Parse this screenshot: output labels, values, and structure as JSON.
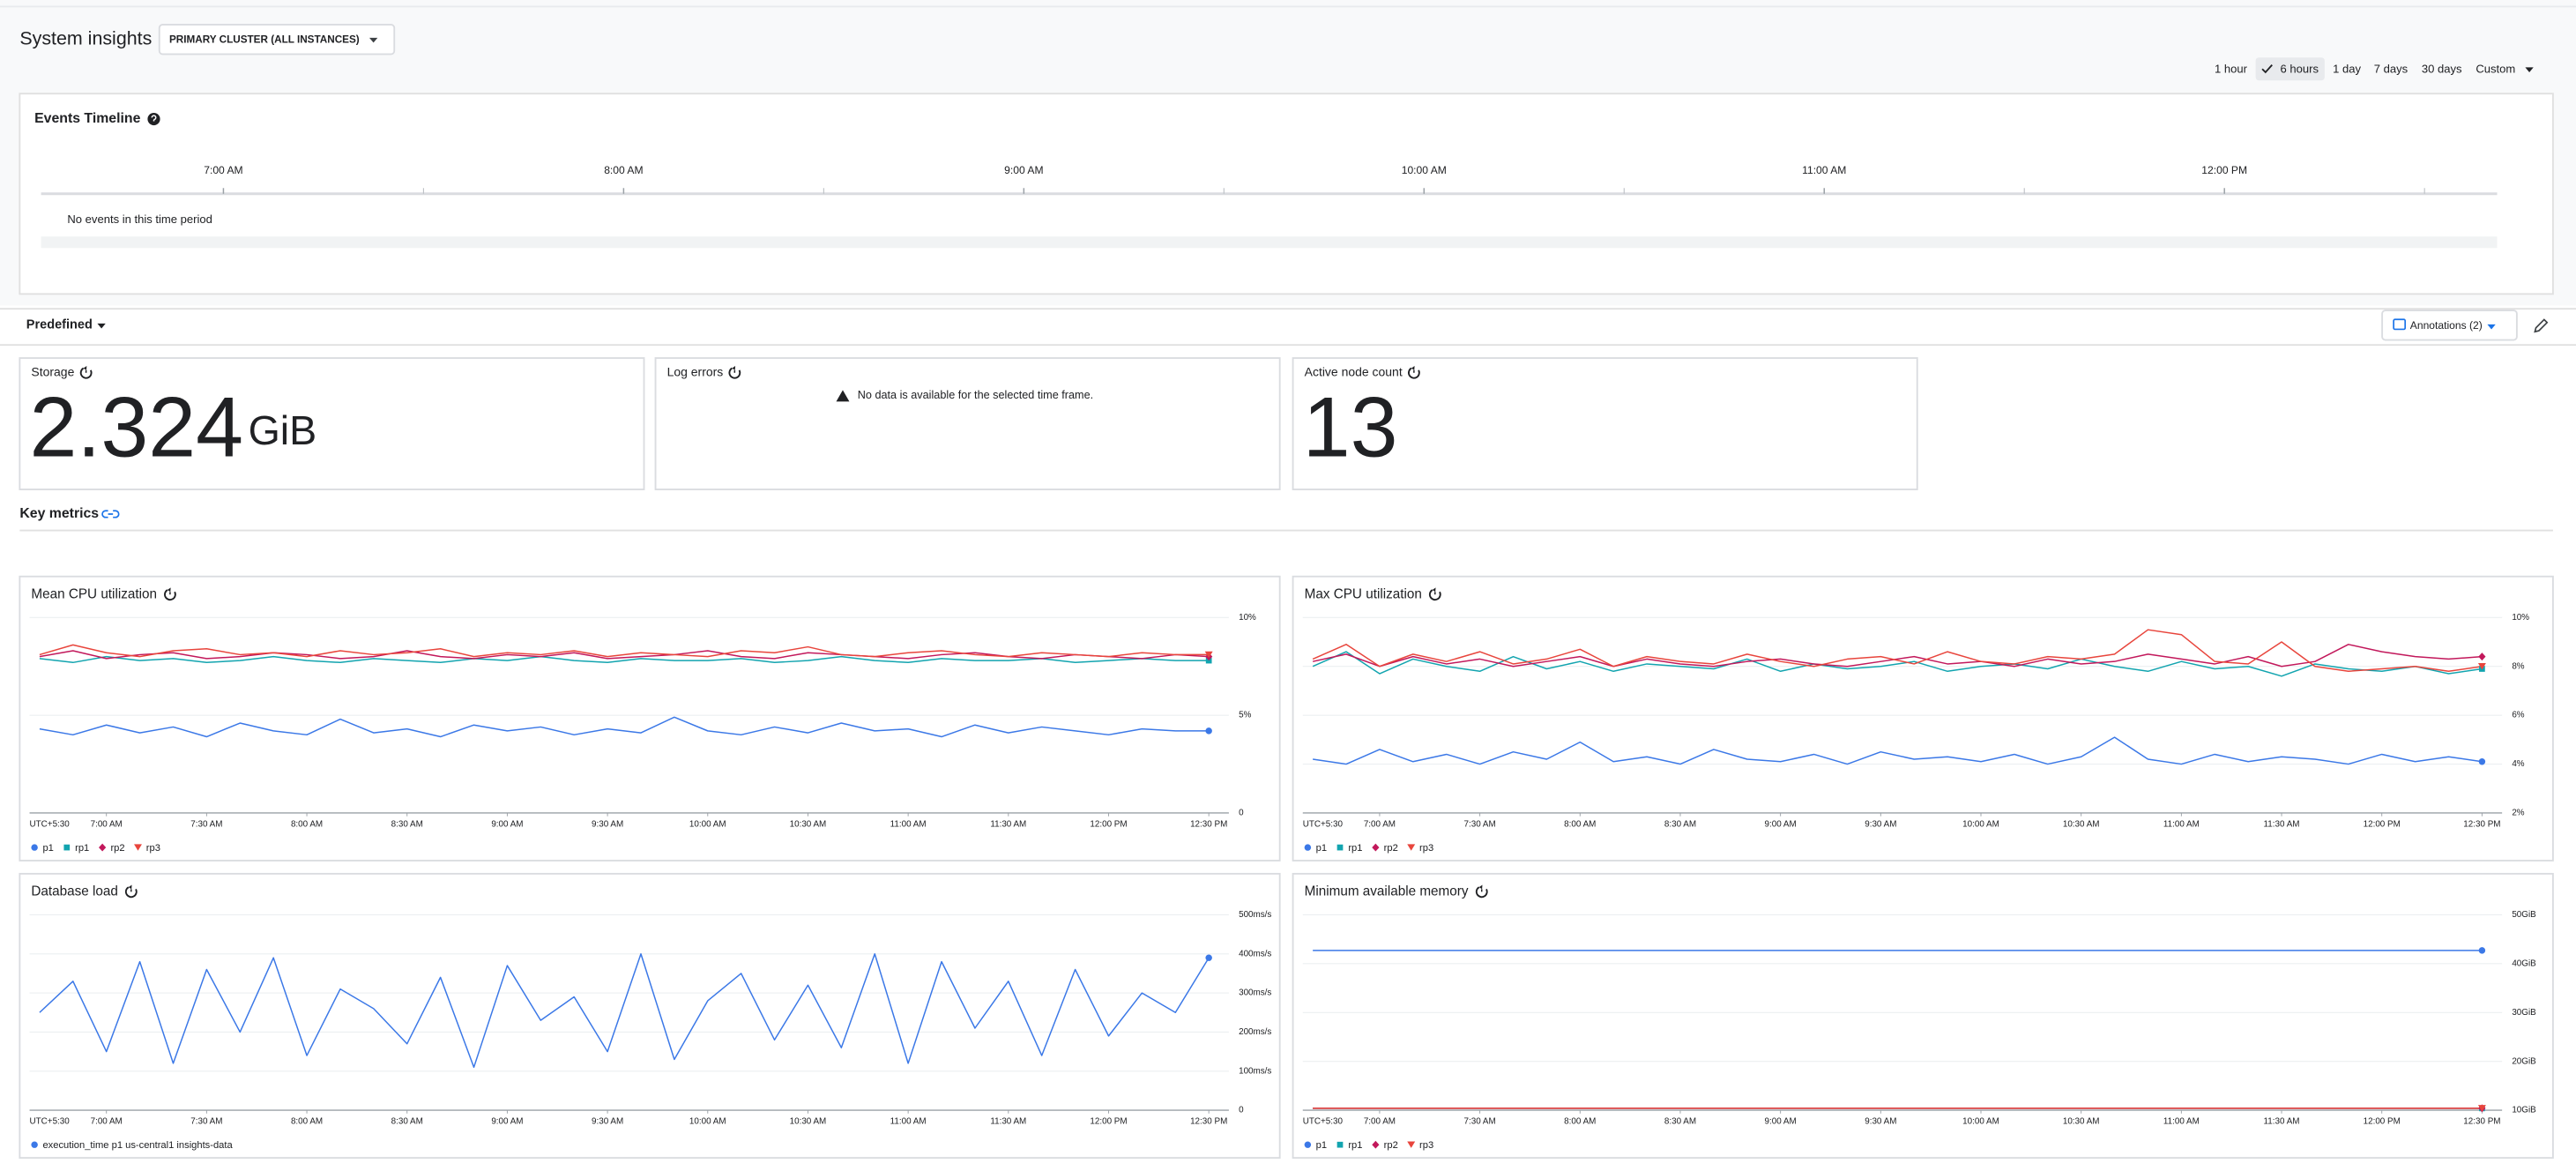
{
  "header": {
    "title": "System insights",
    "cluster_button": "PRIMARY CLUSTER (ALL INSTANCES)",
    "time_ranges": [
      "1 hour",
      "6 hours",
      "1 day",
      "7 days",
      "30 days",
      "Custom"
    ],
    "selected_range_index": 1
  },
  "events_timeline": {
    "title": "Events Timeline",
    "ticks": [
      "7:00 AM",
      "8:00 AM",
      "9:00 AM",
      "10:00 AM",
      "11:00 AM",
      "12:00 PM"
    ],
    "empty_message": "No events in this time period"
  },
  "toolbar": {
    "view": "Predefined",
    "annotations": "Annotations (2)"
  },
  "scorecards": [
    {
      "title": "Storage",
      "value": 2.324,
      "unit": "GiB"
    },
    {
      "title": "Log errors",
      "message": "No data is available for the selected time frame."
    },
    {
      "title": "Active node count",
      "value": 13
    }
  ],
  "section_title": "Key metrics",
  "chart_data": [
    {
      "type": "line",
      "title": "Mean CPU utilization",
      "timezone": "UTC+5:30",
      "x": [
        400,
        410,
        420,
        430,
        440,
        450,
        460,
        470,
        480,
        490,
        500,
        510,
        520,
        530,
        540,
        550,
        560,
        570,
        580,
        590,
        600,
        610,
        620,
        630,
        640,
        650,
        660,
        670,
        680,
        690,
        700,
        710,
        720,
        730,
        740,
        750
      ],
      "xlim": [
        397,
        756
      ],
      "xticks": [
        {
          "value": 420,
          "label": "7:00 AM"
        },
        {
          "value": 450,
          "label": "7:30 AM"
        },
        {
          "value": 480,
          "label": "8:00 AM"
        },
        {
          "value": 510,
          "label": "8:30 AM"
        },
        {
          "value": 540,
          "label": "9:00 AM"
        },
        {
          "value": 570,
          "label": "9:30 AM"
        },
        {
          "value": 600,
          "label": "10:00 AM"
        },
        {
          "value": 630,
          "label": "10:30 AM"
        },
        {
          "value": 660,
          "label": "11:00 AM"
        },
        {
          "value": 690,
          "label": "11:30 AM"
        },
        {
          "value": 720,
          "label": "12:00 PM"
        },
        {
          "value": 750,
          "label": "12:30 PM"
        }
      ],
      "ylim": [
        0,
        10
      ],
      "yticks": [
        0,
        {
          "value": 5,
          "label": "5%"
        },
        {
          "value": 10,
          "label": "10%"
        }
      ],
      "grid": true,
      "series": [
        {
          "name": "p1",
          "color": "#3b78e7",
          "marker": "circle",
          "values": [
            4.3,
            4.0,
            4.5,
            4.1,
            4.4,
            3.9,
            4.6,
            4.2,
            4.0,
            4.8,
            4.1,
            4.3,
            3.9,
            4.5,
            4.2,
            4.4,
            4.0,
            4.3,
            4.1,
            4.9,
            4.2,
            4.0,
            4.4,
            4.1,
            4.6,
            4.2,
            4.3,
            3.9,
            4.5,
            4.1,
            4.4,
            4.2,
            4.0,
            4.3,
            4.2,
            4.2
          ]
        },
        {
          "name": "rp1",
          "color": "#12a4af",
          "marker": "square",
          "values": [
            7.9,
            7.7,
            8.0,
            7.8,
            7.9,
            7.7,
            7.8,
            8.0,
            7.8,
            7.7,
            7.9,
            7.8,
            7.7,
            7.9,
            7.8,
            8.0,
            7.8,
            7.7,
            7.9,
            7.8,
            7.8,
            7.9,
            7.7,
            7.8,
            8.0,
            7.8,
            7.7,
            7.9,
            7.8,
            7.8,
            7.9,
            7.7,
            7.8,
            7.9,
            7.8,
            7.8
          ]
        },
        {
          "name": "rp2",
          "color": "#c2185b",
          "marker": "diamond",
          "values": [
            8.0,
            8.3,
            7.9,
            8.1,
            8.2,
            7.9,
            8.0,
            8.2,
            8.1,
            7.9,
            8.0,
            8.3,
            8.0,
            7.9,
            8.1,
            8.0,
            8.2,
            7.9,
            8.0,
            8.1,
            8.3,
            8.0,
            7.9,
            8.2,
            8.1,
            8.0,
            7.9,
            8.1,
            8.2,
            8.0,
            7.9,
            8.1,
            8.0,
            7.9,
            8.1,
            8.0
          ]
        },
        {
          "name": "rp3",
          "color": "#e8453c",
          "marker": "triangle",
          "values": [
            8.1,
            8.6,
            8.2,
            8.0,
            8.3,
            8.4,
            8.1,
            8.2,
            8.0,
            8.3,
            8.1,
            8.2,
            8.4,
            8.0,
            8.2,
            8.1,
            8.3,
            8.0,
            8.2,
            8.1,
            8.0,
            8.3,
            8.2,
            8.5,
            8.1,
            8.0,
            8.2,
            8.3,
            8.1,
            8.0,
            8.2,
            8.1,
            8.0,
            8.2,
            8.1,
            8.1
          ]
        }
      ]
    },
    {
      "type": "line",
      "title": "Max CPU utilization",
      "timezone": "UTC+5:30",
      "x": [
        400,
        410,
        420,
        430,
        440,
        450,
        460,
        470,
        480,
        490,
        500,
        510,
        520,
        530,
        540,
        550,
        560,
        570,
        580,
        590,
        600,
        610,
        620,
        630,
        640,
        650,
        660,
        670,
        680,
        690,
        700,
        710,
        720,
        730,
        740,
        750
      ],
      "xlim": [
        397,
        756
      ],
      "xticks": [
        {
          "value": 420,
          "label": "7:00 AM"
        },
        {
          "value": 450,
          "label": "7:30 AM"
        },
        {
          "value": 480,
          "label": "8:00 AM"
        },
        {
          "value": 510,
          "label": "8:30 AM"
        },
        {
          "value": 540,
          "label": "9:00 AM"
        },
        {
          "value": 570,
          "label": "9:30 AM"
        },
        {
          "value": 600,
          "label": "10:00 AM"
        },
        {
          "value": 630,
          "label": "10:30 AM"
        },
        {
          "value": 660,
          "label": "11:00 AM"
        },
        {
          "value": 690,
          "label": "11:30 AM"
        },
        {
          "value": 720,
          "label": "12:00 PM"
        },
        {
          "value": 750,
          "label": "12:30 PM"
        }
      ],
      "ylim": [
        2,
        10
      ],
      "yticks": [
        {
          "value": 2,
          "label": "2%"
        },
        {
          "value": 4,
          "label": "4%"
        },
        {
          "value": 6,
          "label": "6%"
        },
        {
          "value": 8,
          "label": "8%"
        },
        {
          "value": 10,
          "label": "10%"
        }
      ],
      "grid": true,
      "series": [
        {
          "name": "p1",
          "color": "#3b78e7",
          "marker": "circle",
          "values": [
            4.2,
            4.0,
            4.6,
            4.1,
            4.4,
            4.0,
            4.5,
            4.2,
            4.9,
            4.1,
            4.3,
            4.0,
            4.6,
            4.2,
            4.1,
            4.4,
            4.0,
            4.5,
            4.2,
            4.3,
            4.1,
            4.4,
            4.0,
            4.3,
            5.1,
            4.2,
            4.0,
            4.4,
            4.1,
            4.3,
            4.2,
            4.0,
            4.4,
            4.1,
            4.3,
            4.1
          ]
        },
        {
          "name": "rp1",
          "color": "#12a4af",
          "marker": "square",
          "values": [
            8.0,
            8.6,
            7.7,
            8.3,
            8.0,
            7.8,
            8.4,
            7.9,
            8.2,
            7.8,
            8.1,
            8.0,
            7.9,
            8.3,
            7.8,
            8.1,
            7.9,
            8.0,
            8.2,
            7.8,
            8.0,
            8.1,
            7.9,
            8.3,
            8.0,
            7.8,
            8.2,
            7.9,
            8.0,
            7.6,
            8.1,
            7.9,
            7.8,
            8.0,
            7.7,
            7.9
          ]
        },
        {
          "name": "rp2",
          "color": "#c2185b",
          "marker": "diamond",
          "values": [
            8.2,
            8.5,
            8.0,
            8.4,
            8.1,
            8.3,
            8.0,
            8.2,
            8.4,
            8.0,
            8.3,
            8.1,
            8.0,
            8.2,
            8.3,
            8.1,
            8.0,
            8.2,
            8.4,
            8.1,
            8.2,
            8.0,
            8.3,
            8.1,
            8.2,
            8.5,
            8.3,
            8.1,
            8.4,
            8.0,
            8.2,
            8.9,
            8.6,
            8.4,
            8.3,
            8.4
          ]
        },
        {
          "name": "rp3",
          "color": "#e8453c",
          "marker": "triangle",
          "values": [
            8.3,
            8.9,
            8.0,
            8.5,
            8.2,
            8.6,
            8.1,
            8.3,
            8.7,
            8.0,
            8.4,
            8.2,
            8.1,
            8.5,
            8.2,
            8.0,
            8.3,
            8.4,
            8.1,
            8.6,
            8.2,
            8.1,
            8.4,
            8.3,
            8.5,
            9.5,
            9.3,
            8.2,
            8.1,
            9.0,
            8.0,
            7.8,
            7.9,
            8.0,
            7.8,
            8.0
          ]
        }
      ]
    },
    {
      "type": "line",
      "title": "Database load",
      "timezone": "UTC+5:30",
      "x": [
        400,
        410,
        420,
        430,
        440,
        450,
        460,
        470,
        480,
        490,
        500,
        510,
        520,
        530,
        540,
        550,
        560,
        570,
        580,
        590,
        600,
        610,
        620,
        630,
        640,
        650,
        660,
        670,
        680,
        690,
        700,
        710,
        720,
        730,
        740,
        750
      ],
      "xlim": [
        397,
        756
      ],
      "xticks": [
        {
          "value": 420,
          "label": "7:00 AM"
        },
        {
          "value": 450,
          "label": "7:30 AM"
        },
        {
          "value": 480,
          "label": "8:00 AM"
        },
        {
          "value": 510,
          "label": "8:30 AM"
        },
        {
          "value": 540,
          "label": "9:00 AM"
        },
        {
          "value": 570,
          "label": "9:30 AM"
        },
        {
          "value": 600,
          "label": "10:00 AM"
        },
        {
          "value": 630,
          "label": "10:30 AM"
        },
        {
          "value": 660,
          "label": "11:00 AM"
        },
        {
          "value": 690,
          "label": "11:30 AM"
        },
        {
          "value": 720,
          "label": "12:00 PM"
        },
        {
          "value": 750,
          "label": "12:30 PM"
        }
      ],
      "ylim": [
        0,
        500
      ],
      "yticks": [
        0,
        {
          "value": 100,
          "label": "100ms/s"
        },
        {
          "value": 200,
          "label": "200ms/s"
        },
        {
          "value": 300,
          "label": "300ms/s"
        },
        {
          "value": 400,
          "label": "400ms/s"
        },
        {
          "value": 500,
          "label": "500ms/s"
        }
      ],
      "grid": true,
      "series": [
        {
          "name": "execution_time p1 us-central1 insights-data",
          "color": "#3b78e7",
          "marker": "circle",
          "values": [
            250,
            330,
            150,
            380,
            120,
            360,
            200,
            390,
            140,
            310,
            260,
            170,
            340,
            110,
            370,
            230,
            290,
            150,
            400,
            130,
            280,
            350,
            180,
            320,
            160,
            400,
            120,
            380,
            210,
            330,
            140,
            360,
            190,
            300,
            250,
            390
          ]
        }
      ]
    },
    {
      "type": "line",
      "title": "Minimum available memory",
      "timezone": "UTC+5:30",
      "x": [
        400,
        450,
        500,
        550,
        600,
        650,
        700,
        750
      ],
      "xlim": [
        397,
        756
      ],
      "xticks": [
        {
          "value": 420,
          "label": "7:00 AM"
        },
        {
          "value": 450,
          "label": "7:30 AM"
        },
        {
          "value": 480,
          "label": "8:00 AM"
        },
        {
          "value": 510,
          "label": "8:30 AM"
        },
        {
          "value": 540,
          "label": "9:00 AM"
        },
        {
          "value": 570,
          "label": "9:30 AM"
        },
        {
          "value": 600,
          "label": "10:00 AM"
        },
        {
          "value": 630,
          "label": "10:30 AM"
        },
        {
          "value": 660,
          "label": "11:00 AM"
        },
        {
          "value": 690,
          "label": "11:30 AM"
        },
        {
          "value": 720,
          "label": "12:00 PM"
        },
        {
          "value": 750,
          "label": "12:30 PM"
        }
      ],
      "ylim": [
        10,
        50
      ],
      "yticks": [
        {
          "value": 10,
          "label": "10GiB"
        },
        {
          "value": 20,
          "label": "20GiB"
        },
        {
          "value": 30,
          "label": "30GiB"
        },
        {
          "value": 40,
          "label": "40GiB"
        },
        {
          "value": 50,
          "label": "50GiB"
        }
      ],
      "grid": true,
      "series": [
        {
          "name": "p1",
          "color": "#3b78e7",
          "marker": "circle",
          "values": [
            42.7,
            42.7,
            42.7,
            42.7,
            42.7,
            42.7,
            42.7,
            42.7
          ]
        },
        {
          "name": "rp1",
          "color": "#12a4af",
          "marker": "square",
          "values": [
            10.4,
            10.4,
            10.4,
            10.4,
            10.4,
            10.4,
            10.4,
            10.4
          ]
        },
        {
          "name": "rp2",
          "color": "#c2185b",
          "marker": "diamond",
          "values": [
            10.4,
            10.4,
            10.4,
            10.4,
            10.4,
            10.4,
            10.4,
            10.4
          ]
        },
        {
          "name": "rp3",
          "color": "#e8453c",
          "marker": "triangle",
          "values": [
            10.4,
            10.4,
            10.4,
            10.4,
            10.4,
            10.4,
            10.4,
            10.4
          ]
        }
      ]
    }
  ]
}
